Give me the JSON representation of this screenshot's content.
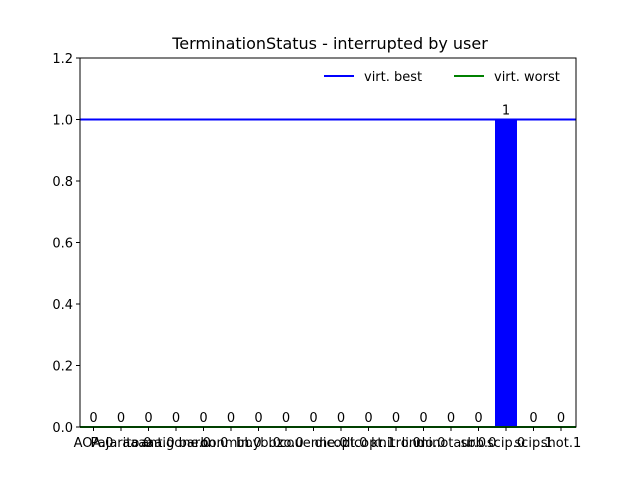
{
  "chart_data": {
    "type": "bar",
    "title": "TerminationStatus - interrupted by user",
    "xlabel": "",
    "ylabel": "",
    "ylim": [
      0,
      1.2
    ],
    "yticks": [
      0.0,
      0.2,
      0.4,
      0.6,
      0.8,
      1.0,
      1.2
    ],
    "grid": false,
    "legend_position": "top-right",
    "categories": [
      "AOA.0",
      "Pajarito.0",
      "aaaaa.0",
      "antigone.0",
      "baron.0",
      "bonmin.0",
      "bbyb.0",
      "bzo.0",
      "couenne.0",
      "dicopt.0",
      "dicopt.1",
      "knitro.0",
      "lindo.0",
      "minotaur.0",
      "sbb.0",
      "scip.0",
      "scip.1",
      "shot.1"
    ],
    "series": [
      {
        "name": "virt. best",
        "type": "hline",
        "value": 1.0,
        "color": "#0000ff"
      },
      {
        "name": "virt. worst",
        "type": "hline",
        "value": 0.0,
        "color": "#008000"
      }
    ],
    "values": [
      0,
      0,
      0,
      0,
      0,
      0,
      0,
      0,
      0,
      0,
      0,
      0,
      0,
      0,
      0,
      1,
      0,
      0
    ],
    "value_labels": [
      "0",
      "0",
      "0",
      "0",
      "0",
      "0",
      "0",
      "0",
      "0",
      "0",
      "0",
      "0",
      "0",
      "0",
      "0",
      "1",
      "0",
      "0"
    ],
    "bar_color": "#0000ff"
  }
}
